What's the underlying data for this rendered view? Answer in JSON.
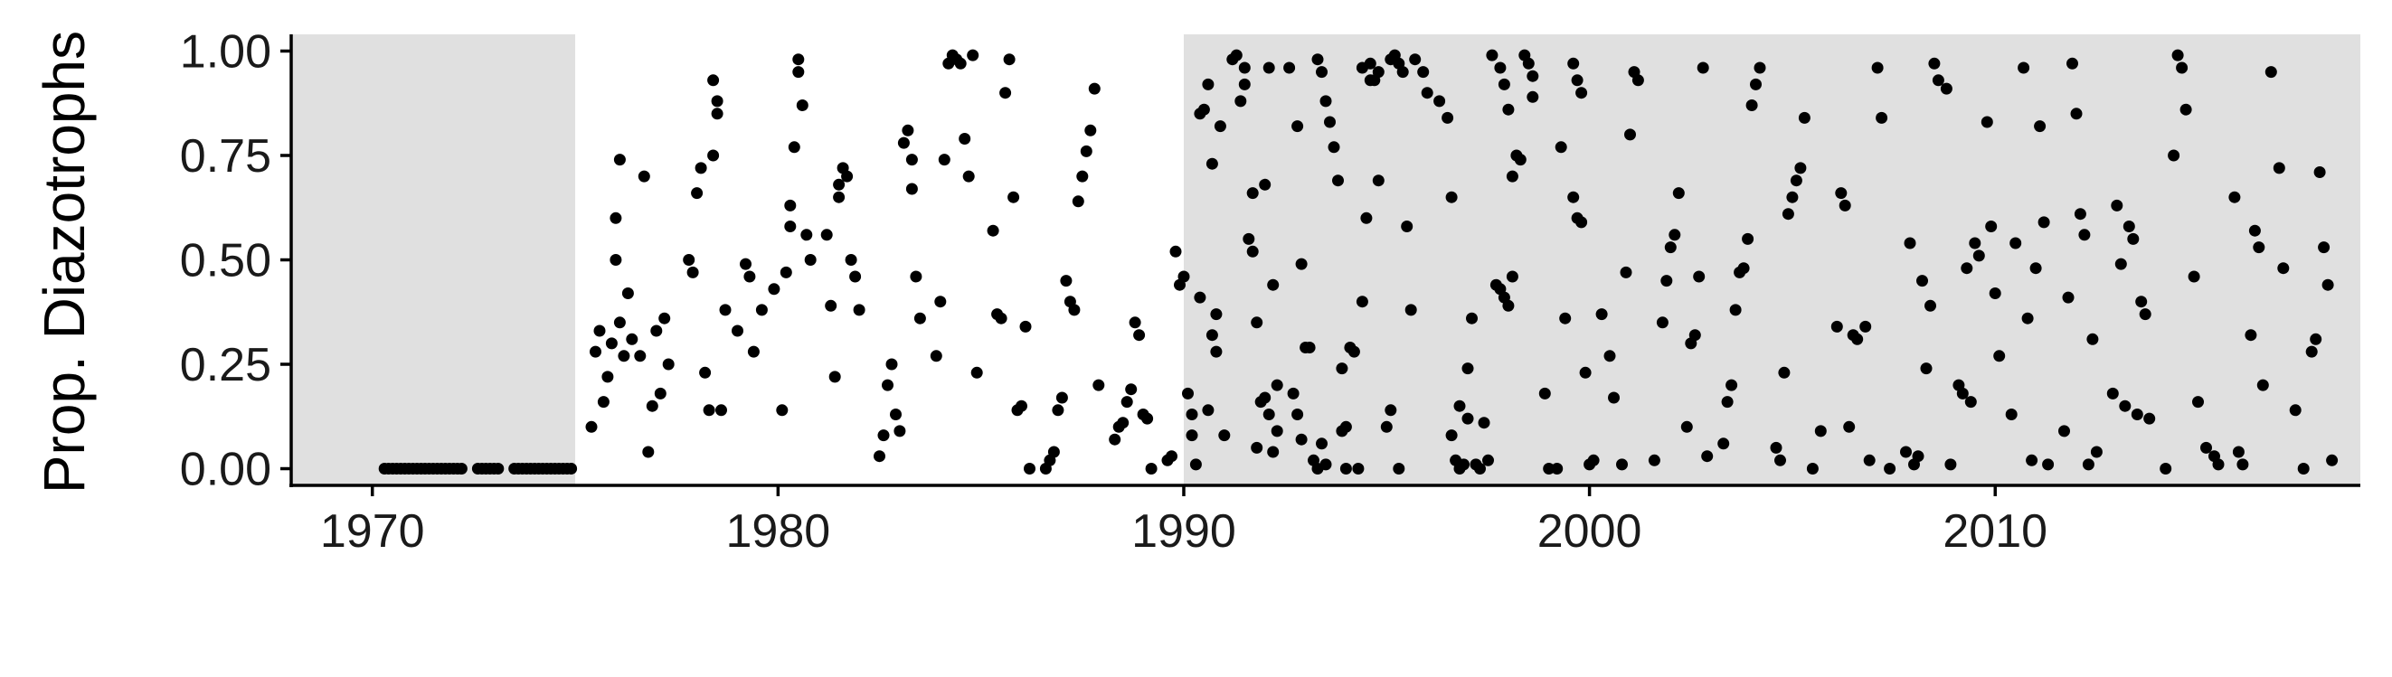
{
  "chart_data": {
    "type": "scatter",
    "title": "",
    "xlabel": "",
    "ylabel": "Prop. Diazotrophs",
    "xlim": [
      1968.0,
      2019.0
    ],
    "ylim": [
      -0.04,
      1.04
    ],
    "x_ticks": [
      1970,
      1980,
      1990,
      2000,
      2010
    ],
    "y_ticks": [
      0.0,
      0.25,
      0.5,
      0.75,
      1.0
    ],
    "x_tick_labels": [
      "1970",
      "1980",
      "1990",
      "2000",
      "2010"
    ],
    "y_tick_labels": [
      "0.00",
      "0.25",
      "0.50",
      "0.75",
      "1.00"
    ],
    "shaded_periods": [
      [
        1968.0,
        1975.0
      ],
      [
        1990.0,
        2019.0
      ]
    ],
    "shade_color": "#e0e0e0",
    "point_color": "#000000",
    "grid": false,
    "legend": "none",
    "points": [
      [
        1970.3,
        0
      ],
      [
        1970.4,
        0
      ],
      [
        1970.5,
        0
      ],
      [
        1970.6,
        0
      ],
      [
        1970.7,
        0
      ],
      [
        1970.8,
        0
      ],
      [
        1970.9,
        0
      ],
      [
        1971.0,
        0
      ],
      [
        1971.1,
        0
      ],
      [
        1971.2,
        0
      ],
      [
        1971.3,
        0
      ],
      [
        1971.4,
        0
      ],
      [
        1971.5,
        0
      ],
      [
        1971.6,
        0
      ],
      [
        1971.7,
        0
      ],
      [
        1971.8,
        0
      ],
      [
        1971.9,
        0
      ],
      [
        1972.0,
        0
      ],
      [
        1972.1,
        0
      ],
      [
        1972.2,
        0
      ],
      [
        1972.6,
        0
      ],
      [
        1972.7,
        0
      ],
      [
        1972.8,
        0
      ],
      [
        1972.9,
        0
      ],
      [
        1973.0,
        0
      ],
      [
        1973.1,
        0
      ],
      [
        1973.5,
        0
      ],
      [
        1973.6,
        0
      ],
      [
        1973.7,
        0
      ],
      [
        1973.8,
        0
      ],
      [
        1973.9,
        0
      ],
      [
        1974.0,
        0
      ],
      [
        1974.1,
        0
      ],
      [
        1974.2,
        0
      ],
      [
        1974.3,
        0
      ],
      [
        1974.4,
        0
      ],
      [
        1974.5,
        0
      ],
      [
        1974.6,
        0
      ],
      [
        1974.7,
        0
      ],
      [
        1974.8,
        0
      ],
      [
        1974.9,
        0
      ],
      [
        1975.4,
        0.1
      ],
      [
        1975.5,
        0.28
      ],
      [
        1975.6,
        0.33
      ],
      [
        1975.7,
        0.16
      ],
      [
        1975.8,
        0.22
      ],
      [
        1975.9,
        0.3
      ],
      [
        1976.0,
        0.5
      ],
      [
        1976.0,
        0.6
      ],
      [
        1976.1,
        0.74
      ],
      [
        1976.1,
        0.35
      ],
      [
        1976.2,
        0.27
      ],
      [
        1976.3,
        0.42
      ],
      [
        1976.4,
        0.31
      ],
      [
        1976.6,
        0.27
      ],
      [
        1976.7,
        0.7
      ],
      [
        1976.8,
        0.04
      ],
      [
        1976.9,
        0.15
      ],
      [
        1977.0,
        0.33
      ],
      [
        1977.1,
        0.18
      ],
      [
        1977.2,
        0.36
      ],
      [
        1977.3,
        0.25
      ],
      [
        1977.8,
        0.5
      ],
      [
        1977.9,
        0.47
      ],
      [
        1978.0,
        0.66
      ],
      [
        1978.1,
        0.72
      ],
      [
        1978.2,
        0.23
      ],
      [
        1978.3,
        0.14
      ],
      [
        1978.4,
        0.75
      ],
      [
        1978.4,
        0.93
      ],
      [
        1978.5,
        0.88
      ],
      [
        1978.5,
        0.85
      ],
      [
        1978.6,
        0.14
      ],
      [
        1978.7,
        0.38
      ],
      [
        1979.0,
        0.33
      ],
      [
        1979.2,
        0.49
      ],
      [
        1979.3,
        0.46
      ],
      [
        1979.4,
        0.28
      ],
      [
        1979.6,
        0.38
      ],
      [
        1979.9,
        0.43
      ],
      [
        1980.1,
        0.14
      ],
      [
        1980.2,
        0.47
      ],
      [
        1980.3,
        0.58
      ],
      [
        1980.3,
        0.63
      ],
      [
        1980.4,
        0.77
      ],
      [
        1980.5,
        0.95
      ],
      [
        1980.5,
        0.98
      ],
      [
        1980.6,
        0.87
      ],
      [
        1980.7,
        0.56
      ],
      [
        1980.8,
        0.5
      ],
      [
        1981.2,
        0.56
      ],
      [
        1981.3,
        0.39
      ],
      [
        1981.4,
        0.22
      ],
      [
        1981.5,
        0.65
      ],
      [
        1981.5,
        0.68
      ],
      [
        1981.6,
        0.72
      ],
      [
        1981.7,
        0.7
      ],
      [
        1981.8,
        0.5
      ],
      [
        1981.9,
        0.46
      ],
      [
        1982.0,
        0.38
      ],
      [
        1982.5,
        0.03
      ],
      [
        1982.6,
        0.08
      ],
      [
        1982.7,
        0.2
      ],
      [
        1982.8,
        0.25
      ],
      [
        1982.9,
        0.13
      ],
      [
        1983.0,
        0.09
      ],
      [
        1983.1,
        0.78
      ],
      [
        1983.2,
        0.81
      ],
      [
        1983.3,
        0.74
      ],
      [
        1983.3,
        0.67
      ],
      [
        1983.4,
        0.46
      ],
      [
        1983.5,
        0.36
      ],
      [
        1983.9,
        0.27
      ],
      [
        1984.0,
        0.4
      ],
      [
        1984.1,
        0.74
      ],
      [
        1984.2,
        0.97
      ],
      [
        1984.3,
        0.99
      ],
      [
        1984.4,
        0.98
      ],
      [
        1984.5,
        0.97
      ],
      [
        1984.6,
        0.79
      ],
      [
        1984.7,
        0.7
      ],
      [
        1984.8,
        0.99
      ],
      [
        1984.9,
        0.23
      ],
      [
        1985.3,
        0.57
      ],
      [
        1985.4,
        0.37
      ],
      [
        1985.5,
        0.36
      ],
      [
        1985.6,
        0.9
      ],
      [
        1985.7,
        0.98
      ],
      [
        1985.8,
        0.65
      ],
      [
        1985.9,
        0.14
      ],
      [
        1986.0,
        0.15
      ],
      [
        1986.1,
        0.34
      ],
      [
        1986.2,
        0.0
      ],
      [
        1986.6,
        0.0
      ],
      [
        1986.7,
        0.02
      ],
      [
        1986.8,
        0.04
      ],
      [
        1986.9,
        0.14
      ],
      [
        1987.0,
        0.17
      ],
      [
        1987.1,
        0.45
      ],
      [
        1987.2,
        0.4
      ],
      [
        1987.3,
        0.38
      ],
      [
        1987.4,
        0.64
      ],
      [
        1987.5,
        0.7
      ],
      [
        1987.6,
        0.76
      ],
      [
        1987.7,
        0.81
      ],
      [
        1987.8,
        0.91
      ],
      [
        1987.9,
        0.2
      ],
      [
        1988.3,
        0.07
      ],
      [
        1988.4,
        0.1
      ],
      [
        1988.5,
        0.11
      ],
      [
        1988.6,
        0.16
      ],
      [
        1988.7,
        0.19
      ],
      [
        1988.8,
        0.35
      ],
      [
        1988.9,
        0.32
      ],
      [
        1989.0,
        0.13
      ],
      [
        1989.1,
        0.12
      ],
      [
        1989.2,
        0.0
      ],
      [
        1989.6,
        0.02
      ],
      [
        1989.7,
        0.03
      ],
      [
        1989.8,
        0.52
      ],
      [
        1989.9,
        0.44
      ],
      [
        1990.0,
        0.46
      ],
      [
        1990.1,
        0.18
      ],
      [
        1990.2,
        0.13
      ],
      [
        1990.3,
        0.01
      ],
      [
        1990.4,
        0.85
      ],
      [
        1990.5,
        0.86
      ],
      [
        1990.6,
        0.14
      ],
      [
        1990.7,
        0.73
      ],
      [
        1990.8,
        0.37
      ],
      [
        1991.2,
        0.98
      ],
      [
        1991.3,
        0.99
      ],
      [
        1991.4,
        0.88
      ],
      [
        1991.5,
        0.92
      ],
      [
        1991.6,
        0.55
      ],
      [
        1991.7,
        0.52
      ],
      [
        1991.8,
        0.35
      ],
      [
        1991.9,
        0.16
      ],
      [
        1992.0,
        0.17
      ],
      [
        1992.1,
        0.13
      ],
      [
        1992.2,
        0.04
      ],
      [
        1992.3,
        0.09
      ],
      [
        1992.7,
        0.18
      ],
      [
        1992.8,
        0.13
      ],
      [
        1992.9,
        0.07
      ],
      [
        1993.0,
        0.29
      ],
      [
        1993.1,
        0.29
      ],
      [
        1993.2,
        0.02
      ],
      [
        1993.3,
        0.0
      ],
      [
        1993.4,
        0.06
      ],
      [
        1993.5,
        0.01
      ],
      [
        1993.9,
        0.09
      ],
      [
        1994.0,
        0.1
      ],
      [
        1994.1,
        0.29
      ],
      [
        1994.2,
        0.28
      ],
      [
        1994.3,
        0.0
      ],
      [
        1994.4,
        0.4
      ],
      [
        1994.5,
        0.6
      ],
      [
        1994.6,
        0.97
      ],
      [
        1994.7,
        0.93
      ],
      [
        1994.8,
        0.95
      ],
      [
        1995.1,
        0.98
      ],
      [
        1995.2,
        0.99
      ],
      [
        1995.3,
        0.97
      ],
      [
        1995.4,
        0.95
      ],
      [
        1995.5,
        0.58
      ],
      [
        1995.6,
        0.38
      ],
      [
        1990.2,
        0.08
      ],
      [
        1990.4,
        0.41
      ],
      [
        1990.6,
        0.92
      ],
      [
        1990.7,
        0.32
      ],
      [
        1990.8,
        0.28
      ],
      [
        1990.9,
        0.82
      ],
      [
        1991.0,
        0.08
      ],
      [
        1991.5,
        0.96
      ],
      [
        1991.7,
        0.66
      ],
      [
        1991.8,
        0.05
      ],
      [
        1992.0,
        0.68
      ],
      [
        1992.1,
        0.96
      ],
      [
        1992.2,
        0.44
      ],
      [
        1992.3,
        0.2
      ],
      [
        1992.6,
        0.96
      ],
      [
        1992.8,
        0.82
      ],
      [
        1992.9,
        0.49
      ],
      [
        1993.3,
        0.98
      ],
      [
        1993.4,
        0.95
      ],
      [
        1993.5,
        0.88
      ],
      [
        1993.6,
        0.83
      ],
      [
        1993.7,
        0.77
      ],
      [
        1993.8,
        0.69
      ],
      [
        1993.9,
        0.24
      ],
      [
        1994.0,
        0.0
      ],
      [
        1994.4,
        0.96
      ],
      [
        1994.6,
        0.93
      ],
      [
        1994.8,
        0.69
      ],
      [
        1995.0,
        0.1
      ],
      [
        1995.1,
        0.14
      ],
      [
        1995.3,
        0.0
      ],
      [
        1995.7,
        0.98
      ],
      [
        1995.9,
        0.95
      ],
      [
        1996.0,
        0.9
      ],
      [
        1996.3,
        0.88
      ],
      [
        1996.5,
        0.84
      ],
      [
        1996.6,
        0.65
      ],
      [
        1996.8,
        0.15
      ],
      [
        1997.0,
        0.12
      ],
      [
        1997.2,
        0.01
      ],
      [
        1997.4,
        0.11
      ],
      [
        1997.6,
        0.99
      ],
      [
        1997.8,
        0.96
      ],
      [
        1997.9,
        0.92
      ],
      [
        1998.0,
        0.86
      ],
      [
        1998.1,
        0.7
      ],
      [
        1996.6,
        0.08
      ],
      [
        1996.7,
        0.02
      ],
      [
        1996.8,
        0.0
      ],
      [
        1996.9,
        0.01
      ],
      [
        1997.0,
        0.24
      ],
      [
        1997.1,
        0.36
      ],
      [
        1997.3,
        0.0
      ],
      [
        1997.5,
        0.02
      ],
      [
        1997.7,
        0.44
      ],
      [
        1997.8,
        0.43
      ],
      [
        1997.9,
        0.41
      ],
      [
        1998.0,
        0.39
      ],
      [
        1998.1,
        0.46
      ],
      [
        1998.2,
        0.75
      ],
      [
        1998.3,
        0.74
      ],
      [
        1998.4,
        0.99
      ],
      [
        1998.5,
        0.97
      ],
      [
        1998.6,
        0.94
      ],
      [
        1998.6,
        0.89
      ],
      [
        1998.9,
        0.18
      ],
      [
        1999.0,
        0.0
      ],
      [
        1999.2,
        0.0
      ],
      [
        1999.3,
        0.77
      ],
      [
        1999.4,
        0.36
      ],
      [
        1999.6,
        0.65
      ],
      [
        1999.7,
        0.6
      ],
      [
        1999.8,
        0.59
      ],
      [
        1999.9,
        0.23
      ],
      [
        2000.0,
        0.01
      ],
      [
        1999.6,
        0.97
      ],
      [
        1999.7,
        0.93
      ],
      [
        1999.8,
        0.9
      ],
      [
        2000.1,
        0.02
      ],
      [
        2000.3,
        0.37
      ],
      [
        2000.5,
        0.27
      ],
      [
        2000.6,
        0.17
      ],
      [
        2000.8,
        0.01
      ],
      [
        2000.9,
        0.47
      ],
      [
        2001.0,
        0.8
      ],
      [
        2001.1,
        0.95
      ],
      [
        2001.2,
        0.93
      ],
      [
        2001.6,
        0.02
      ],
      [
        2001.8,
        0.35
      ],
      [
        2001.9,
        0.45
      ],
      [
        2002.0,
        0.53
      ],
      [
        2002.1,
        0.56
      ],
      [
        2002.2,
        0.66
      ],
      [
        2002.4,
        0.1
      ],
      [
        2002.5,
        0.3
      ],
      [
        2002.6,
        0.32
      ],
      [
        2002.7,
        0.46
      ],
      [
        2002.8,
        0.96
      ],
      [
        2002.9,
        0.03
      ],
      [
        2003.3,
        0.06
      ],
      [
        2003.4,
        0.16
      ],
      [
        2003.5,
        0.2
      ],
      [
        2003.6,
        0.38
      ],
      [
        2003.7,
        0.47
      ],
      [
        2003.8,
        0.48
      ],
      [
        2003.9,
        0.55
      ],
      [
        2004.0,
        0.87
      ],
      [
        2004.1,
        0.92
      ],
      [
        2004.2,
        0.96
      ],
      [
        2004.6,
        0.05
      ],
      [
        2004.7,
        0.02
      ],
      [
        2004.8,
        0.23
      ],
      [
        2004.9,
        0.61
      ],
      [
        2005.0,
        0.65
      ],
      [
        2005.1,
        0.69
      ],
      [
        2005.2,
        0.72
      ],
      [
        2005.3,
        0.84
      ],
      [
        2005.5,
        0.0
      ],
      [
        2005.7,
        0.09
      ],
      [
        2006.1,
        0.34
      ],
      [
        2006.2,
        0.66
      ],
      [
        2006.3,
        0.63
      ],
      [
        2006.4,
        0.1
      ],
      [
        2006.5,
        0.32
      ],
      [
        2006.6,
        0.31
      ],
      [
        2006.8,
        0.34
      ],
      [
        2006.9,
        0.02
      ],
      [
        2007.1,
        0.96
      ],
      [
        2007.2,
        0.84
      ],
      [
        2007.4,
        0.0
      ],
      [
        2007.8,
        0.04
      ],
      [
        2007.9,
        0.54
      ],
      [
        2008.0,
        0.01
      ],
      [
        2008.1,
        0.03
      ],
      [
        2008.2,
        0.45
      ],
      [
        2008.3,
        0.24
      ],
      [
        2008.4,
        0.39
      ],
      [
        2008.5,
        0.97
      ],
      [
        2008.6,
        0.93
      ],
      [
        2008.8,
        0.91
      ],
      [
        2008.9,
        0.01
      ],
      [
        2009.1,
        0.2
      ],
      [
        2009.2,
        0.18
      ],
      [
        2009.3,
        0.48
      ],
      [
        2009.4,
        0.16
      ],
      [
        2009.5,
        0.54
      ],
      [
        2009.6,
        0.51
      ],
      [
        2009.8,
        0.83
      ],
      [
        2009.9,
        0.58
      ],
      [
        2010.0,
        0.42
      ],
      [
        2010.1,
        0.27
      ],
      [
        2010.4,
        0.13
      ],
      [
        2010.5,
        0.54
      ],
      [
        2010.7,
        0.96
      ],
      [
        2010.8,
        0.36
      ],
      [
        2010.9,
        0.02
      ],
      [
        2011.0,
        0.48
      ],
      [
        2011.1,
        0.82
      ],
      [
        2011.2,
        0.59
      ],
      [
        2011.3,
        0.01
      ],
      [
        2011.7,
        0.09
      ],
      [
        2011.8,
        0.41
      ],
      [
        2011.9,
        0.97
      ],
      [
        2012.0,
        0.85
      ],
      [
        2012.1,
        0.61
      ],
      [
        2012.2,
        0.56
      ],
      [
        2012.3,
        0.01
      ],
      [
        2012.4,
        0.31
      ],
      [
        2012.5,
        0.04
      ],
      [
        2012.9,
        0.18
      ],
      [
        2013.0,
        0.63
      ],
      [
        2013.1,
        0.49
      ],
      [
        2013.2,
        0.15
      ],
      [
        2013.3,
        0.58
      ],
      [
        2013.4,
        0.55
      ],
      [
        2013.5,
        0.13
      ],
      [
        2013.6,
        0.4
      ],
      [
        2013.7,
        0.37
      ],
      [
        2013.8,
        0.12
      ],
      [
        2014.2,
        0.0
      ],
      [
        2014.4,
        0.75
      ],
      [
        2014.5,
        0.99
      ],
      [
        2014.6,
        0.96
      ],
      [
        2014.7,
        0.86
      ],
      [
        2014.9,
        0.46
      ],
      [
        2015.0,
        0.16
      ],
      [
        2015.2,
        0.05
      ],
      [
        2015.4,
        0.03
      ],
      [
        2015.5,
        0.01
      ],
      [
        2015.9,
        0.65
      ],
      [
        2016.0,
        0.04
      ],
      [
        2016.1,
        0.01
      ],
      [
        2016.3,
        0.32
      ],
      [
        2016.4,
        0.57
      ],
      [
        2016.5,
        0.53
      ],
      [
        2016.6,
        0.2
      ],
      [
        2016.8,
        0.95
      ],
      [
        2017.0,
        0.72
      ],
      [
        2017.1,
        0.48
      ],
      [
        2017.4,
        0.14
      ],
      [
        2017.6,
        0.0
      ],
      [
        2017.8,
        0.28
      ],
      [
        2017.9,
        0.31
      ],
      [
        2018.0,
        0.71
      ],
      [
        2018.1,
        0.53
      ],
      [
        2018.2,
        0.44
      ],
      [
        2018.3,
        0.02
      ]
    ]
  }
}
